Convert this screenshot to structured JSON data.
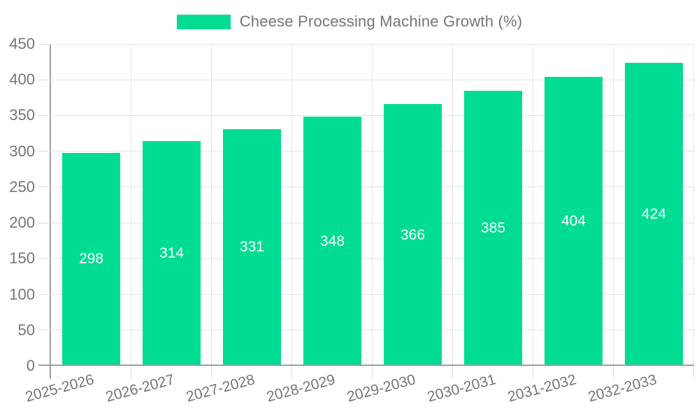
{
  "colors": {
    "bar": "#00DC92",
    "grid": "#E4E4E4",
    "tick": "#DCDCDC",
    "axis": "#9E9E9E",
    "text": "#757575",
    "bar_label": "#FFFFFF",
    "background": "#FFFFFF"
  },
  "chart_data": {
    "type": "bar",
    "title": "Cheese Processing Machine Growth (%)",
    "categories": [
      "2025-2026",
      "2026-2027",
      "2027-2028",
      "2028-2029",
      "2029-2030",
      "2030-2031",
      "2031-2032",
      "2032-2033"
    ],
    "values": [
      298,
      314,
      331,
      348,
      366,
      385,
      404,
      424
    ],
    "bar_labels": [
      "298",
      "314",
      "331",
      "348",
      "366",
      "385",
      "404",
      "424"
    ],
    "xlabel": "",
    "ylabel": "",
    "ylim": [
      0,
      450
    ],
    "ytick_step": 50,
    "yticks": [
      "0",
      "50",
      "100",
      "150",
      "200",
      "250",
      "300",
      "350",
      "400",
      "450"
    ],
    "grid": true,
    "legend_position": "top",
    "legend_entries": [
      "Cheese Processing Machine Growth (%)"
    ],
    "x_label_rotation_deg": -15,
    "bar_value_label_position": "center"
  }
}
